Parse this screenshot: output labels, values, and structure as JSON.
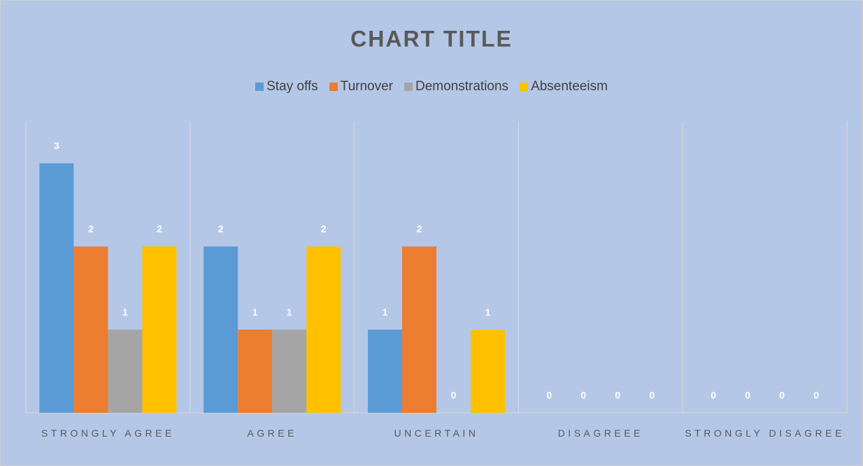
{
  "chart_data": {
    "type": "bar",
    "title": "CHART TITLE",
    "categories": [
      "STRONGLY AGREE",
      "AGREE",
      "UNCERTAIN",
      "DISAGREEE",
      "STRONGLY DISAGREE"
    ],
    "series": [
      {
        "name": "Stay offs",
        "color": "#5b9bd5",
        "values": [
          3,
          2,
          1,
          0,
          0
        ]
      },
      {
        "name": "Turnover",
        "color": "#ed7d31",
        "values": [
          2,
          1,
          2,
          0,
          0
        ]
      },
      {
        "name": "Demonstrations",
        "color": "#a5a5a5",
        "values": [
          1,
          1,
          0,
          0,
          0
        ]
      },
      {
        "name": "Absenteeism",
        "color": "#ffc000",
        "values": [
          2,
          2,
          1,
          0,
          0
        ]
      }
    ],
    "ylim": [
      0,
      3.5
    ],
    "legend": "top",
    "data_labels": true
  }
}
